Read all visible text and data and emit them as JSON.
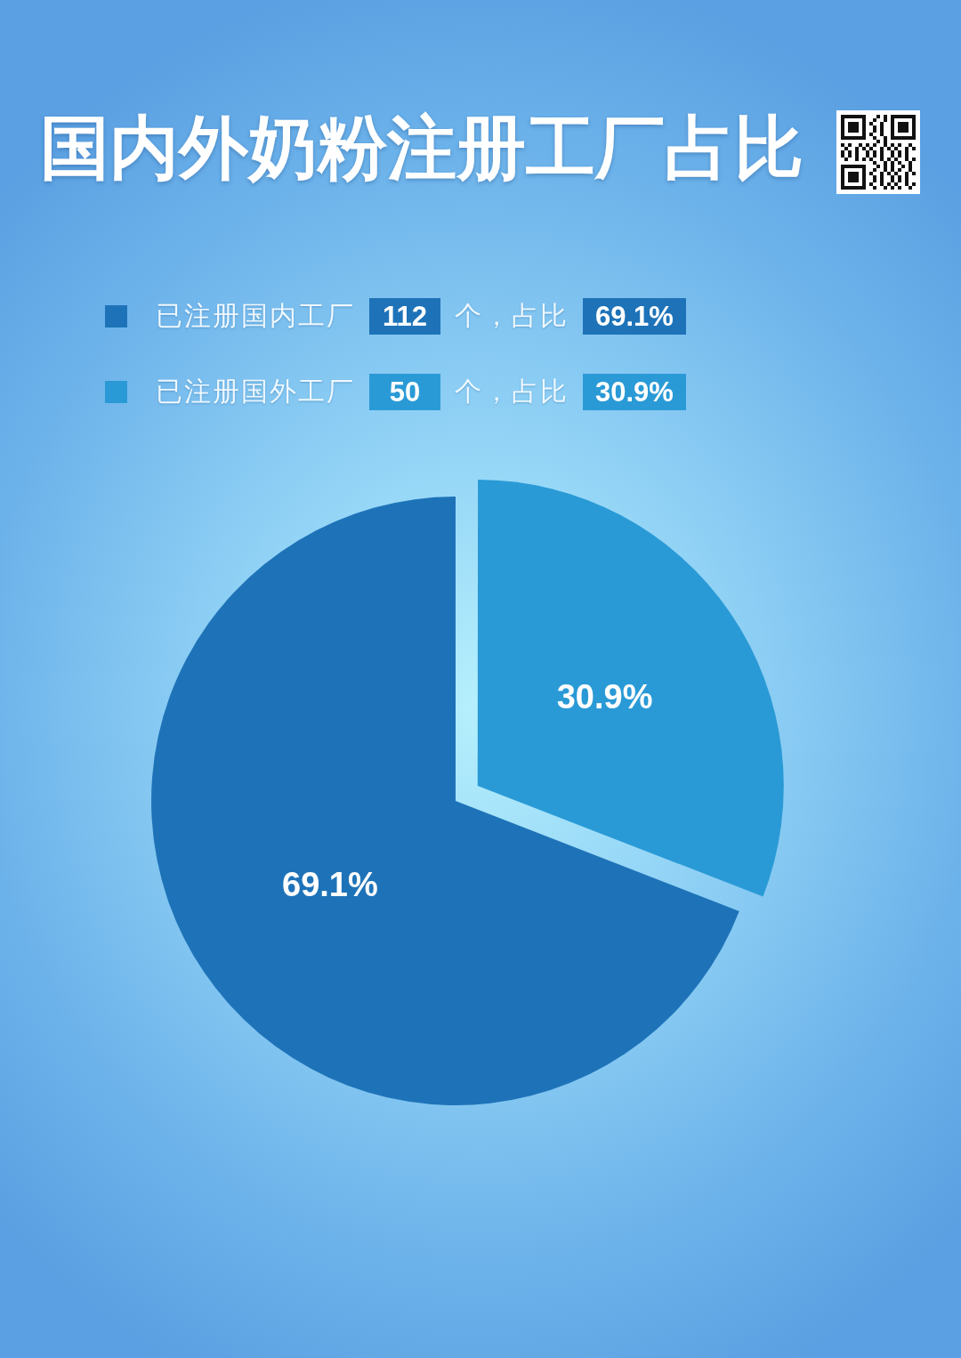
{
  "chart_data": {
    "type": "pie",
    "title": "国内外奶粉注册工厂占比",
    "categories": [
      "已注册国内工厂 112 个，占比 69.1%",
      "已注册国外工厂 50 个，占比 30.9%"
    ],
    "values": [
      69.1,
      30.9
    ],
    "colors": [
      "#1e73b8",
      "#2a9ad6"
    ],
    "value_labels": [
      "69.1%",
      "30.9%"
    ],
    "legend": "top left"
  }
}
